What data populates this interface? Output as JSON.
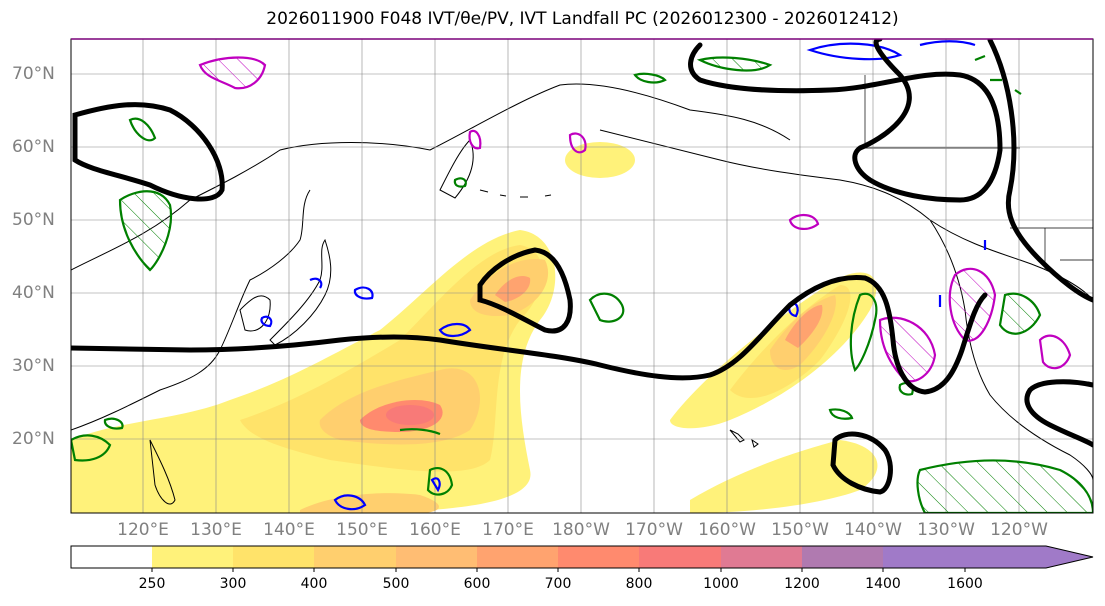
{
  "title": "2026011900 F048 IVT/θe/PV, IVT Landfall PC (2026012300 - 2026012412)",
  "lat_labels": [
    "70°N",
    "60°N",
    "50°N",
    "40°N",
    "30°N",
    "20°N"
  ],
  "lon_labels": [
    "120°E",
    "130°E",
    "140°E",
    "150°E",
    "160°E",
    "170°E",
    "180°W",
    "170°W",
    "160°W",
    "150°W",
    "140°W",
    "130°W",
    "120°W"
  ],
  "colorbar": {
    "ticks": [
      "250",
      "300",
      "400",
      "500",
      "600",
      "700",
      "800",
      "1000",
      "1200",
      "1400",
      "1600"
    ],
    "colors": [
      "#ffffff",
      "#fff27a",
      "#ffe36a",
      "#ffcf6e",
      "#ffbd73",
      "#ffa36f",
      "#ff8a6e",
      "#f87a78",
      "#e07a93",
      "#b07ab0",
      "#a07ac8"
    ]
  },
  "legend_colors": {
    "theta_e_contour": "#000000",
    "pv_green": "#008000",
    "pv_blue": "#0000ff",
    "pv_magenta": "#c000c0"
  }
}
